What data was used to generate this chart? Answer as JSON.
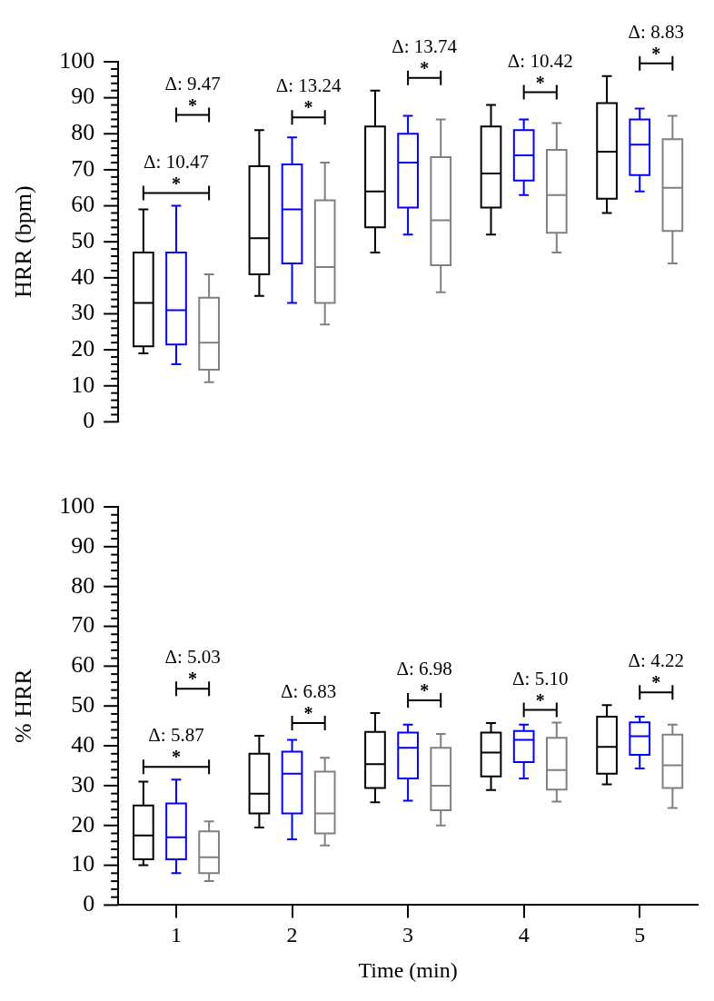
{
  "chart_data": [
    {
      "type": "box",
      "categories": [
        "1",
        "2",
        "3",
        "4",
        "5"
      ],
      "ylabel": "HRR (bpm)",
      "ylim": [
        0,
        100
      ],
      "tick_labels": "y",
      "yticks": [
        0,
        {
          "value": 2,
          "label": null
        },
        {
          "value": 4,
          "label": null
        },
        {
          "value": 6,
          "label": null
        },
        {
          "value": 8,
          "label": null
        },
        10,
        {
          "value": 12,
          "label": null
        },
        {
          "value": 14,
          "label": null
        },
        {
          "value": 16,
          "label": null
        },
        {
          "value": 18,
          "label": null
        },
        20,
        {
          "value": 22,
          "label": null
        },
        {
          "value": 24,
          "label": null
        },
        {
          "value": 26,
          "label": null
        },
        {
          "value": 28,
          "label": null
        },
        30,
        {
          "value": 32,
          "label": null
        },
        {
          "value": 34,
          "label": null
        },
        {
          "value": 36,
          "label": null
        },
        {
          "value": 38,
          "label": null
        },
        40,
        {
          "value": 42,
          "label": null
        },
        {
          "value": 44,
          "label": null
        },
        {
          "value": 46,
          "label": null
        },
        {
          "value": 48,
          "label": null
        },
        50,
        {
          "value": 52,
          "label": null
        },
        {
          "value": 54,
          "label": null
        },
        {
          "value": 56,
          "label": null
        },
        {
          "value": 58,
          "label": null
        },
        60,
        {
          "value": 62,
          "label": null
        },
        {
          "value": 64,
          "label": null
        },
        {
          "value": 66,
          "label": null
        },
        {
          "value": 68,
          "label": null
        },
        70,
        {
          "value": 72,
          "label": null
        },
        {
          "value": 74,
          "label": null
        },
        {
          "value": 76,
          "label": null
        },
        {
          "value": 78,
          "label": null
        },
        80,
        {
          "value": 82,
          "label": null
        },
        {
          "value": 84,
          "label": null
        },
        {
          "value": 86,
          "label": null
        },
        {
          "value": 88,
          "label": null
        },
        90,
        {
          "value": 92,
          "label": null
        },
        {
          "value": 94,
          "label": null
        },
        {
          "value": 96,
          "label": null
        },
        {
          "value": 98,
          "label": null
        },
        100
      ],
      "series": [
        {
          "color": "#000000",
          "boxes": [
            {
              "low": 19,
              "q1": 21,
              "median": 33,
              "q3": 47,
              "high": 59
            },
            {
              "low": 35,
              "q1": 41,
              "median": 51,
              "q3": 71,
              "high": 81
            },
            {
              "low": 47,
              "q1": 54,
              "median": 64,
              "q3": 82,
              "high": 92
            },
            {
              "low": 52,
              "q1": 59.5,
              "median": 69,
              "q3": 82,
              "high": 88
            },
            {
              "low": 58,
              "q1": 62,
              "median": 75,
              "q3": 88.5,
              "high": 96
            }
          ]
        },
        {
          "color": "#0000ff",
          "boxes": [
            {
              "low": 16,
              "q1": 21.5,
              "median": 31,
              "q3": 47,
              "high": 60
            },
            {
              "low": 33,
              "q1": 44,
              "median": 59,
              "q3": 71.5,
              "high": 79
            },
            {
              "low": 52,
              "q1": 59.5,
              "median": 72,
              "q3": 80,
              "high": 85
            },
            {
              "low": 63,
              "q1": 67,
              "median": 74,
              "q3": 81,
              "high": 84
            },
            {
              "low": 64,
              "q1": 68.5,
              "median": 77,
              "q3": 84,
              "high": 87
            }
          ]
        },
        {
          "color": "#808080",
          "boxes": [
            {
              "low": 11,
              "q1": 14.5,
              "median": 22,
              "q3": 34.5,
              "high": 41
            },
            {
              "low": 27,
              "q1": 33,
              "median": 43,
              "q3": 61.5,
              "high": 72
            },
            {
              "low": 36,
              "q1": 43.5,
              "median": 56,
              "q3": 73.5,
              "high": 84
            },
            {
              "low": 47,
              "q1": 52.5,
              "median": 63,
              "q3": 75.5,
              "high": 83
            },
            {
              "low": 44,
              "q1": 53,
              "median": 65,
              "q3": 78.5,
              "high": 85
            }
          ]
        }
      ],
      "annotations": [
        "Δ: 9.47",
        "*",
        "Δ: 10.47",
        "*",
        "Δ: 13.24",
        "*",
        "Δ: 13.74",
        "*",
        "Δ: 10.42",
        "*",
        "Δ: 8.83",
        "*"
      ]
    },
    {
      "type": "box",
      "categories": [
        "1",
        "2",
        "3",
        "4",
        "5"
      ],
      "xlabel": "Time (min)",
      "ylabel": "% HRR",
      "ylim": [
        0,
        100
      ],
      "yticks": [
        0,
        {
          "value": 2,
          "label": null
        },
        {
          "value": 4,
          "label": null
        },
        {
          "value": 6,
          "label": null
        },
        {
          "value": 8,
          "label": null
        },
        10,
        {
          "value": 12,
          "label": null
        },
        {
          "value": 14,
          "label": null
        },
        {
          "value": 16,
          "label": null
        },
        {
          "value": 18,
          "label": null
        },
        20,
        {
          "value": 22,
          "label": null
        },
        {
          "value": 24,
          "label": null
        },
        {
          "value": 26,
          "label": null
        },
        {
          "value": 28,
          "label": null
        },
        30,
        {
          "value": 32,
          "label": null
        },
        {
          "value": 34,
          "label": null
        },
        {
          "value": 36,
          "label": null
        },
        {
          "value": 38,
          "label": null
        },
        40,
        {
          "value": 42,
          "label": null
        },
        {
          "value": 44,
          "label": null
        },
        {
          "value": 46,
          "label": null
        },
        {
          "value": 48,
          "label": null
        },
        50,
        {
          "value": 52,
          "label": null
        },
        {
          "value": 54,
          "label": null
        },
        {
          "value": 56,
          "label": null
        },
        {
          "value": 58,
          "label": null
        },
        60,
        {
          "value": 62,
          "label": null
        },
        {
          "value": 64,
          "label": null
        },
        {
          "value": 66,
          "label": null
        },
        {
          "value": 68,
          "label": null
        },
        70,
        {
          "value": 72,
          "label": null
        },
        {
          "value": 74,
          "label": null
        },
        {
          "value": 76,
          "label": null
        },
        {
          "value": 78,
          "label": null
        },
        80,
        {
          "value": 82,
          "label": null
        },
        {
          "value": 84,
          "label": null
        },
        {
          "value": 86,
          "label": null
        },
        {
          "value": 88,
          "label": null
        },
        90,
        {
          "value": 92,
          "label": null
        },
        {
          "value": 94,
          "label": null
        },
        {
          "value": 96,
          "label": null
        },
        {
          "value": 98,
          "label": null
        },
        100
      ],
      "series": [
        {
          "color": "#000000",
          "boxes": [
            {
              "low": 10,
              "q1": 11.5,
              "median": 17.5,
              "q3": 25,
              "high": 31
            },
            {
              "low": 19.5,
              "q1": 23,
              "median": 28,
              "q3": 38,
              "high": 42.5
            },
            {
              "low": 25.8,
              "q1": 29.4,
              "median": 35.4,
              "q3": 43.5,
              "high": 48.2
            },
            {
              "low": 28.9,
              "q1": 32.3,
              "median": 38.3,
              "q3": 43.3,
              "high": 45.7
            },
            {
              "low": 30.3,
              "q1": 33,
              "median": 39.7,
              "q3": 47.3,
              "high": 50.2
            }
          ]
        },
        {
          "color": "#0000ff",
          "boxes": [
            {
              "low": 8,
              "q1": 11.5,
              "median": 17,
              "q3": 25.5,
              "high": 31.5
            },
            {
              "low": 16.5,
              "q1": 23,
              "median": 33,
              "q3": 38.5,
              "high": 41.5
            },
            {
              "low": 26.2,
              "q1": 31.8,
              "median": 39.5,
              "q3": 43.3,
              "high": 45.3
            },
            {
              "low": 31.8,
              "q1": 35.9,
              "median": 41.5,
              "q3": 43.7,
              "high": 45.3
            },
            {
              "low": 34.3,
              "q1": 37.7,
              "median": 42.4,
              "q3": 45.9,
              "high": 47.3
            }
          ]
        },
        {
          "color": "#808080",
          "boxes": [
            {
              "low": 6,
              "q1": 8,
              "median": 12,
              "q3": 18.5,
              "high": 21
            },
            {
              "low": 15,
              "q1": 18,
              "median": 23,
              "q3": 33.5,
              "high": 37
            },
            {
              "low": 20,
              "q1": 23.8,
              "median": 30,
              "q3": 39.5,
              "high": 43
            },
            {
              "low": 26,
              "q1": 29,
              "median": 33.9,
              "q3": 42,
              "high": 45.8
            },
            {
              "low": 24.4,
              "q1": 29.4,
              "median": 35.1,
              "q3": 42.8,
              "high": 45.3
            }
          ]
        }
      ],
      "annotations": [
        "Δ: 5.03",
        "*",
        "Δ: 5.87",
        "*",
        "Δ: 6.83",
        "*",
        "Δ: 6.98",
        "*",
        "Δ: 5.10",
        "*",
        "Δ: 4.22",
        "*"
      ]
    }
  ]
}
